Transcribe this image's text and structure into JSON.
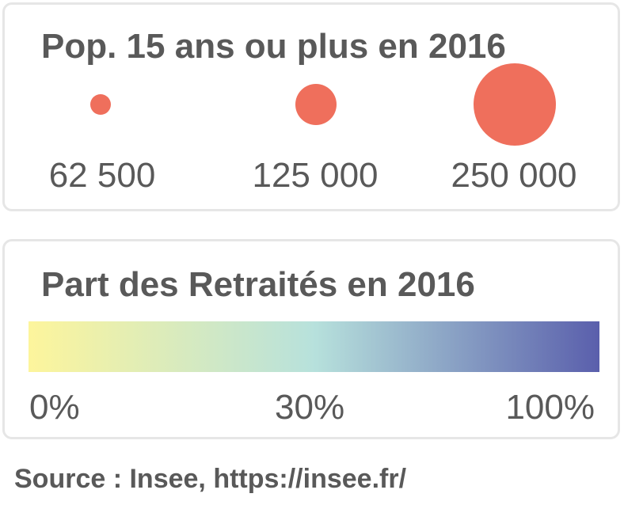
{
  "size_legend": {
    "title": "Pop. 15 ans ou plus en 2016",
    "bubble_color": "#ef6f5c",
    "items": [
      {
        "label": "62 500",
        "value": 62500
      },
      {
        "label": "125 000",
        "value": 125000
      },
      {
        "label": "250 000",
        "value": 250000
      }
    ]
  },
  "color_legend": {
    "title": "Part des Retraités en 2016",
    "gradient_stops": [
      "#fdf59c",
      "#b7e1dc",
      "#5a5fac"
    ],
    "labels": {
      "min": "0%",
      "mid": "30%",
      "max": "100%"
    }
  },
  "source": "Source : Insee, https://insee.fr/"
}
